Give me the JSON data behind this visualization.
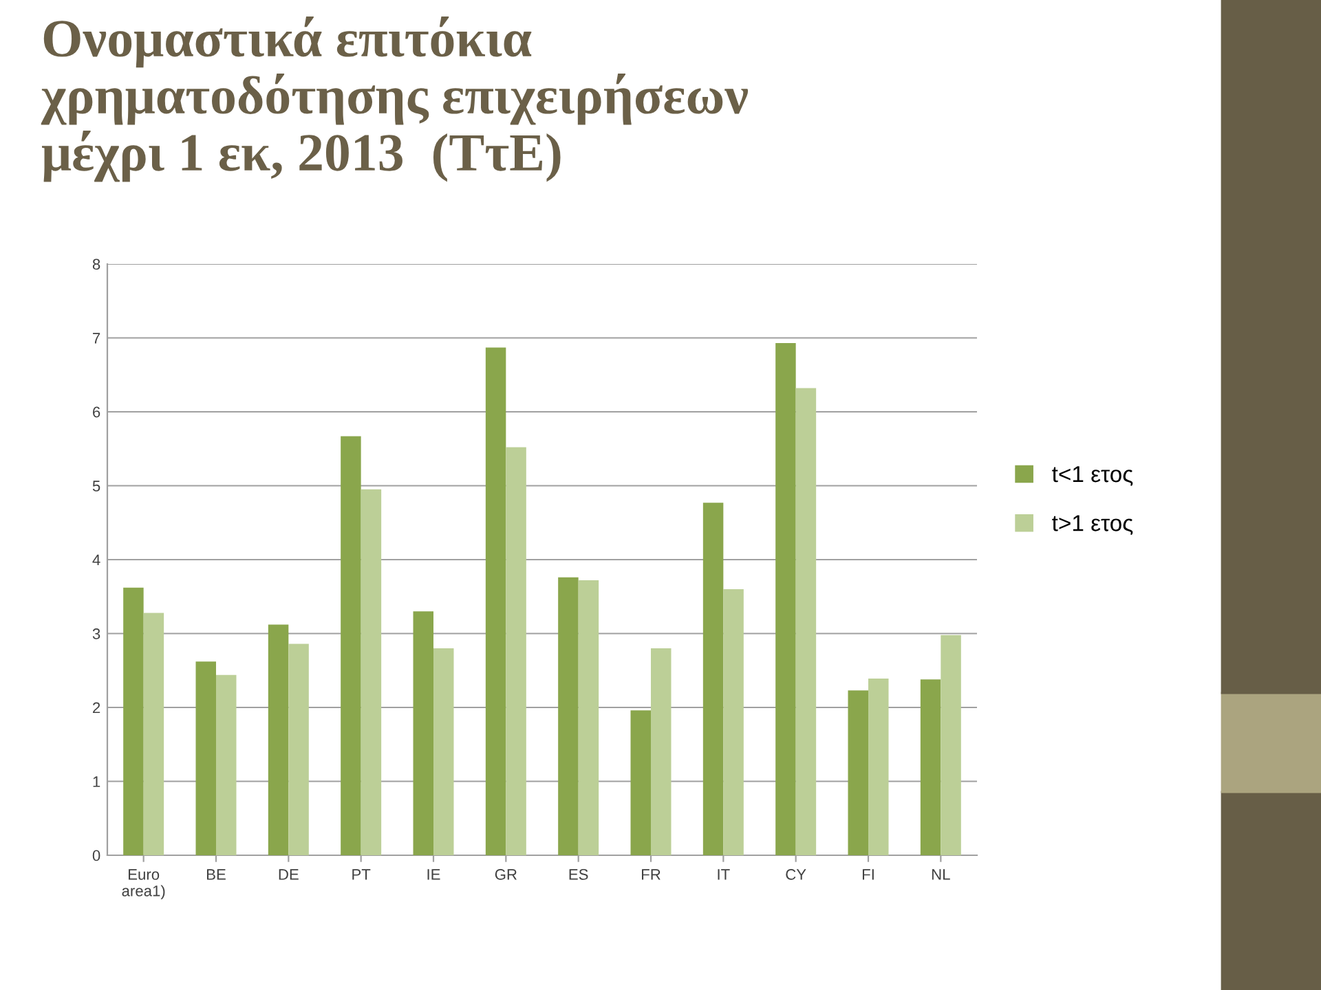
{
  "chart_data": {
    "type": "bar",
    "title": "Ονομαστικά επιτόκια\nχρηματοδότησης επιχειρήσεων\nμέχρι 1 εκ, 2013  (ΤτΕ)",
    "categories": [
      "Euro\narea1)",
      "BE",
      "DE",
      "PT",
      "IE",
      "GR",
      "ES",
      "FR",
      "IT",
      "CY",
      "FI",
      "NL"
    ],
    "series": [
      {
        "name": "t<1 ετος",
        "color": "#8aa64c",
        "values": [
          3.62,
          2.62,
          3.12,
          5.67,
          3.3,
          6.87,
          3.76,
          1.96,
          4.77,
          6.93,
          2.23,
          2.38
        ]
      },
      {
        "name": "t>1 ετος",
        "color": "#bccf97",
        "values": [
          3.28,
          2.44,
          2.86,
          4.95,
          2.8,
          5.52,
          3.72,
          2.8,
          3.6,
          6.32,
          2.39,
          2.98
        ]
      }
    ],
    "ylim": [
      0,
      8
    ],
    "yticks": [
      0,
      1,
      2,
      3,
      4,
      5,
      6,
      7,
      8
    ],
    "grid": "y",
    "legend": "right"
  }
}
